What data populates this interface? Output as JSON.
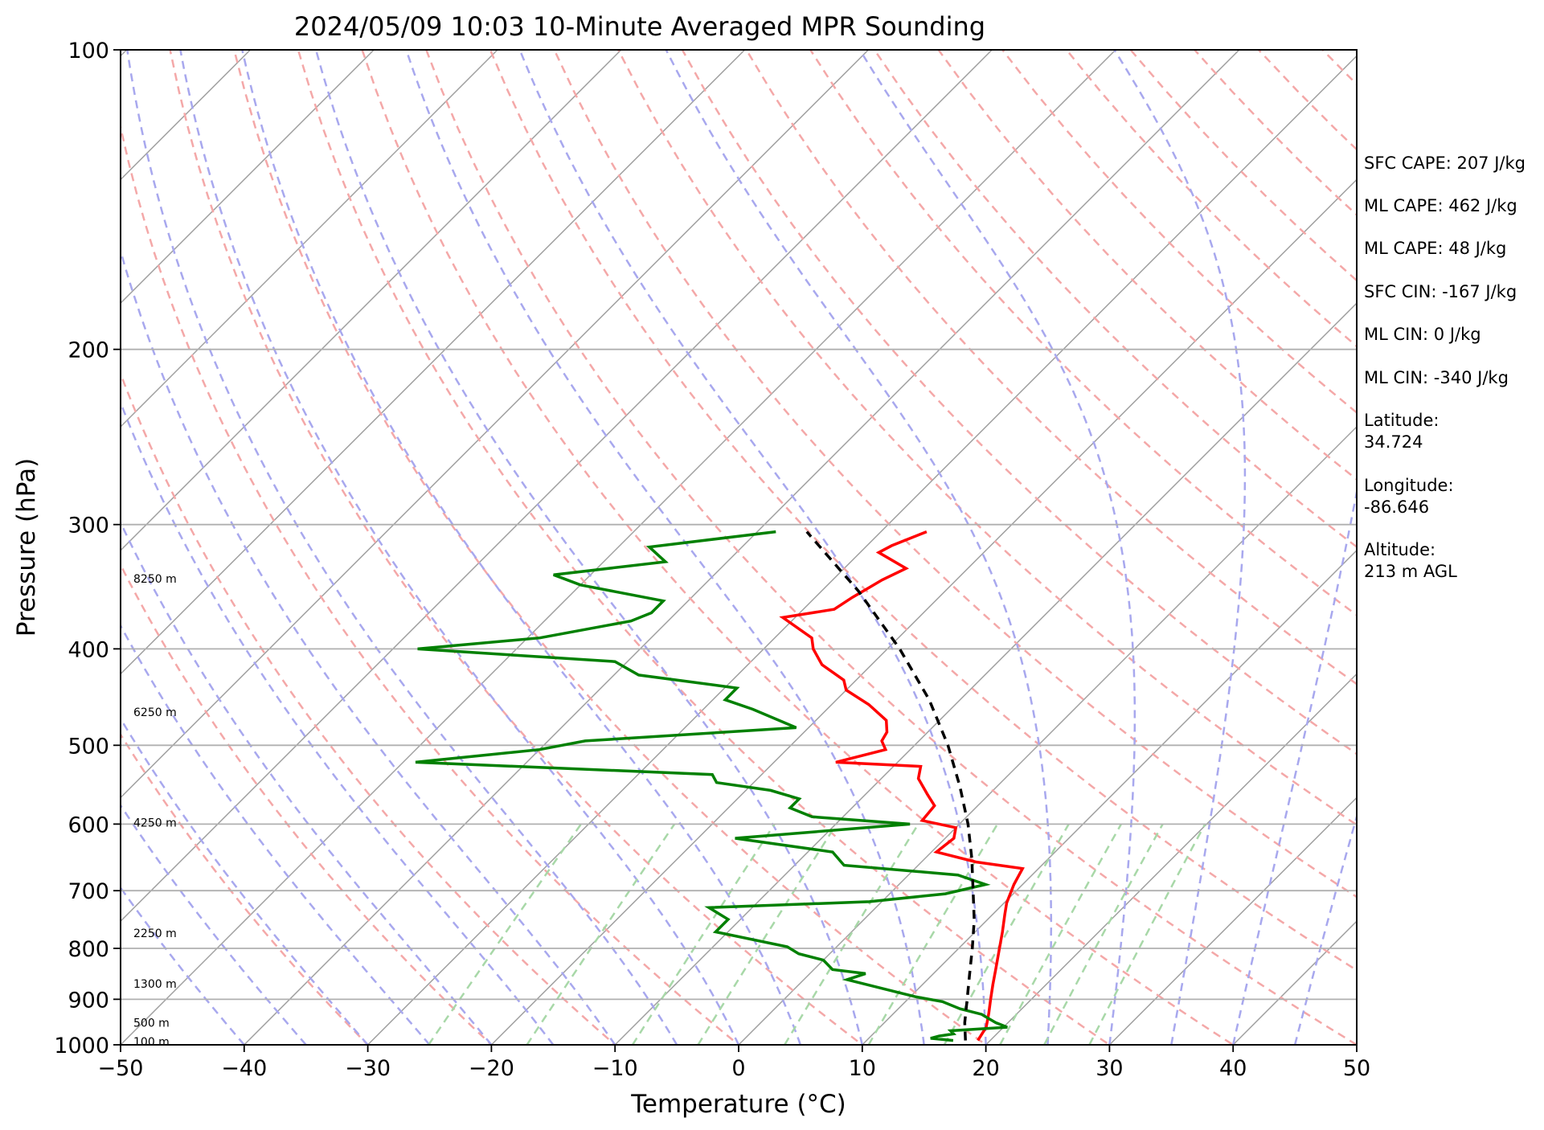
{
  "chart_data": {
    "type": "line",
    "title": "2024/05/09 10:03 10-Minute Averaged MPR Sounding",
    "xlabel": "Temperature (°C)",
    "ylabel": "Pressure (hPa)",
    "xlim": [
      -50,
      50
    ],
    "ylim": [
      1000,
      100
    ],
    "yscale": "log",
    "x_ticks": [
      "−50",
      "−40",
      "−30",
      "−20",
      "−10",
      "0",
      "10",
      "20",
      "30",
      "40",
      "50"
    ],
    "y_ticks": [
      "100",
      "200",
      "300",
      "400",
      "500",
      "600",
      "700",
      "800",
      "900",
      "1000"
    ],
    "grid": "horizontal at 100/200/300/400/500/600/700/800/900/1000 hPa",
    "background_lines": {
      "isotherms": "gray, skewed 45°, every 10 °C",
      "dry_adiabats": "red dashed",
      "moist_adiabats": "blue dashed",
      "mixing_ratio": "green dashed (1000–600 hPa)"
    },
    "height_labels": [
      {
        "text": "100 m",
        "p": 993
      },
      {
        "text": "500 m",
        "p": 950
      },
      {
        "text": "1300 m",
        "p": 868
      },
      {
        "text": "2250 m",
        "p": 772
      },
      {
        "text": "4250 m",
        "p": 598
      },
      {
        "text": "6250 m",
        "p": 463
      },
      {
        "text": "8250 m",
        "p": 340
      }
    ],
    "series": [
      {
        "color": "#ff0000",
        "points": [
          {
            "p": 990,
            "t": 19
          },
          {
            "p": 960,
            "t": 18.6
          },
          {
            "p": 930,
            "t": 17.7
          },
          {
            "p": 900,
            "t": 16.7
          },
          {
            "p": 870,
            "t": 15.7
          },
          {
            "p": 840,
            "t": 14.7
          },
          {
            "p": 800,
            "t": 13.3
          },
          {
            "p": 770,
            "t": 12.2
          },
          {
            "p": 740,
            "t": 11.0
          },
          {
            "p": 720,
            "t": 10.2
          },
          {
            "p": 690,
            "t": 9.3
          },
          {
            "p": 665,
            "t": 8.7
          },
          {
            "p": 655,
            "t": 4.4
          },
          {
            "p": 640,
            "t": 0.4
          },
          {
            "p": 620,
            "t": 0.7
          },
          {
            "p": 605,
            "t": 0.0
          },
          {
            "p": 595,
            "t": -3.3
          },
          {
            "p": 575,
            "t": -3.5
          },
          {
            "p": 560,
            "t": -5.0
          },
          {
            "p": 540,
            "t": -7.0
          },
          {
            "p": 525,
            "t": -7.8
          },
          {
            "p": 520,
            "t": -15.0
          },
          {
            "p": 505,
            "t": -12.0
          },
          {
            "p": 495,
            "t": -13.0
          },
          {
            "p": 485,
            "t": -13.3
          },
          {
            "p": 472,
            "t": -14.3
          },
          {
            "p": 455,
            "t": -17.0
          },
          {
            "p": 440,
            "t": -20.0
          },
          {
            "p": 430,
            "t": -21.0
          },
          {
            "p": 415,
            "t": -24.0
          },
          {
            "p": 400,
            "t": -26.0
          },
          {
            "p": 390,
            "t": -27.0
          },
          {
            "p": 372,
            "t": -31.0
          },
          {
            "p": 365,
            "t": -27.5
          },
          {
            "p": 355,
            "t": -27.0
          },
          {
            "p": 348,
            "t": -26.5
          },
          {
            "p": 341,
            "t": -26.0
          },
          {
            "p": 332,
            "t": -25.0
          },
          {
            "p": 320,
            "t": -28.5
          },
          {
            "p": 315,
            "t": -28.0
          },
          {
            "p": 305,
            "t": -26.3
          }
        ]
      },
      {
        "color": "#008000",
        "points": [
          {
            "p": 990,
            "t": 17
          },
          {
            "p": 985,
            "t": 15
          },
          {
            "p": 980,
            "t": 15.5
          },
          {
            "p": 975,
            "t": 16.5
          },
          {
            "p": 968,
            "t": 16
          },
          {
            "p": 960,
            "t": 20.3
          },
          {
            "p": 950,
            "t": 19
          },
          {
            "p": 940,
            "t": 18
          },
          {
            "p": 932,
            "t": 17.2
          },
          {
            "p": 920,
            "t": 15
          },
          {
            "p": 905,
            "t": 13
          },
          {
            "p": 895,
            "t": 10.5
          },
          {
            "p": 885,
            "t": 8.5
          },
          {
            "p": 860,
            "t": 3.5
          },
          {
            "p": 848,
            "t": 4.5
          },
          {
            "p": 840,
            "t": 1.5
          },
          {
            "p": 822,
            "t": 0.0
          },
          {
            "p": 810,
            "t": -2.5
          },
          {
            "p": 797,
            "t": -4.0
          },
          {
            "p": 770,
            "t": -11.0
          },
          {
            "p": 748,
            "t": -11.0
          },
          {
            "p": 728,
            "t": -13.5
          },
          {
            "p": 718,
            "t": -1.0
          },
          {
            "p": 705,
            "t": 4.5
          },
          {
            "p": 690,
            "t": 7.0
          },
          {
            "p": 675,
            "t": 4.0
          },
          {
            "p": 660,
            "t": -6.0
          },
          {
            "p": 640,
            "t": -8.0
          },
          {
            "p": 620,
            "t": -17.0
          },
          {
            "p": 600,
            "t": -4.0
          },
          {
            "p": 590,
            "t": -12.5
          },
          {
            "p": 578,
            "t": -15.0
          },
          {
            "p": 566,
            "t": -15.0
          },
          {
            "p": 555,
            "t": -18.0
          },
          {
            "p": 545,
            "t": -23.0
          },
          {
            "p": 535,
            "t": -24.0
          },
          {
            "p": 520,
            "t": -49.0
          },
          {
            "p": 505,
            "t": -40.0
          },
          {
            "p": 495,
            "t": -37.0
          },
          {
            "p": 480,
            "t": -21.0
          },
          {
            "p": 460,
            "t": -26.0
          },
          {
            "p": 450,
            "t": -29.0
          },
          {
            "p": 438,
            "t": -29.0
          },
          {
            "p": 425,
            "t": -38.0
          },
          {
            "p": 412,
            "t": -41.0
          },
          {
            "p": 400,
            "t": -58.0
          },
          {
            "p": 390,
            "t": -49.0
          },
          {
            "p": 375,
            "t": -43.0
          },
          {
            "p": 368,
            "t": -42.0
          },
          {
            "p": 358,
            "t": -42.0
          },
          {
            "p": 345,
            "t": -50.0
          },
          {
            "p": 337,
            "t": -53.0
          },
          {
            "p": 327,
            "t": -45.0
          },
          {
            "p": 316,
            "t": -47.5
          },
          {
            "p": 305,
            "t": -38.5
          }
        ]
      },
      {
        "color": "#000000",
        "style": "dashed",
        "points": [
          {
            "p": 990,
            "t": 18.0
          },
          {
            "p": 950,
            "t": 16.5
          },
          {
            "p": 900,
            "t": 14.8
          },
          {
            "p": 850,
            "t": 13.0
          },
          {
            "p": 800,
            "t": 11.1
          },
          {
            "p": 750,
            "t": 9.0
          },
          {
            "p": 700,
            "t": 6.5
          },
          {
            "p": 650,
            "t": 3.8
          },
          {
            "p": 600,
            "t": 0.7
          },
          {
            "p": 550,
            "t": -3.0
          },
          {
            "p": 500,
            "t": -7.3
          },
          {
            "p": 450,
            "t": -12.5
          },
          {
            "p": 400,
            "t": -19.0
          },
          {
            "p": 350,
            "t": -27.0
          },
          {
            "p": 305,
            "t": -36.0
          }
        ]
      }
    ]
  },
  "info_panel": {
    "sfc_cape": "SFC CAPE: 207 J/kg",
    "ml_cape_1": "ML CAPE: 462 J/kg",
    "ml_cape_2": "ML CAPE: 48 J/kg",
    "sfc_cin": "SFC CIN: -167 J/kg",
    "ml_cin_1": "ML CIN: 0 J/kg",
    "ml_cin_2": "ML CIN: -340 J/kg",
    "latitude_label": "Latitude:",
    "latitude_value": "34.724",
    "longitude_label": "Longitude:",
    "longitude_value": "-86.646",
    "altitude_label": "Altitude:",
    "altitude_value": "213 m AGL"
  },
  "colors": {
    "temperature": "#ff0000",
    "dewpoint": "#008000",
    "parcel": "#000000",
    "isotherm": "#a0a0a0",
    "dry_adiabat": "#f4a8a8",
    "moist_adiabat": "#a8a8ee",
    "mixing_ratio": "#a8d8a8"
  }
}
